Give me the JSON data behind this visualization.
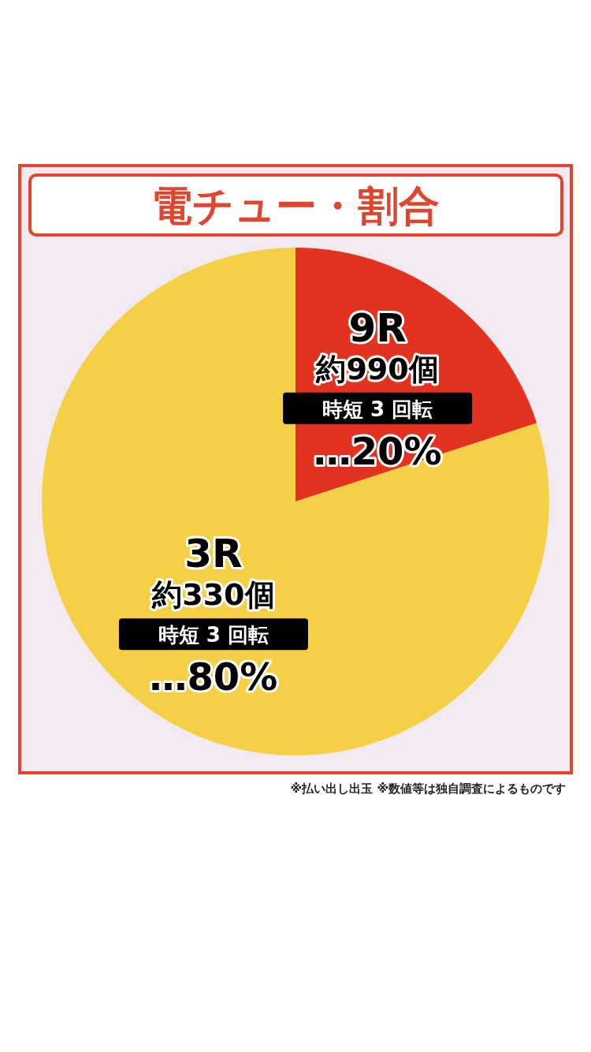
{
  "chart_data": {
    "type": "pie",
    "title": "電チュー・割合",
    "categories": [
      "9R",
      "3R"
    ],
    "values": [
      20,
      80
    ],
    "colors": [
      "#e3321f",
      "#f5cf45"
    ],
    "value_labels": [
      "…20%",
      "…80%"
    ],
    "annotations": [
      "約990個",
      "時短 3 回転",
      "約330個",
      "時短 3 回転",
      "※払い出し出玉 ※数値等は独自調査によるものです"
    ]
  }
}
